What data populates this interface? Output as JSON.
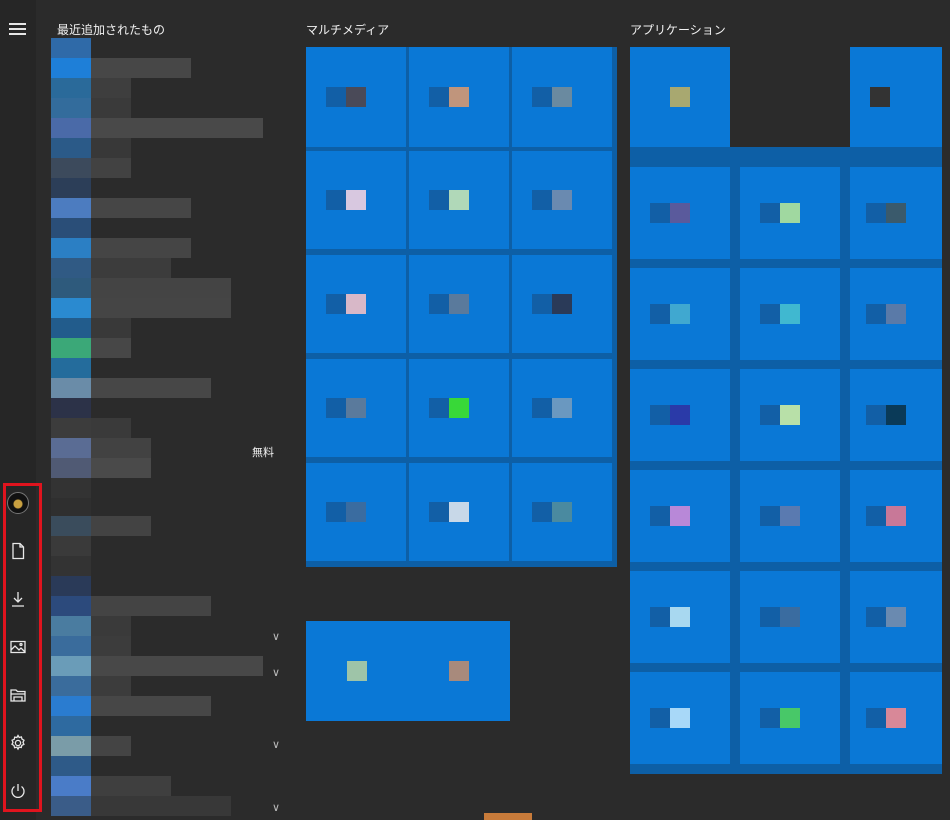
{
  "start_menu": {
    "recent_header": "最近追加されたもの",
    "fragment_text": "無料",
    "groups": [
      {
        "title": "マルチメディア"
      },
      {
        "title": "アプリケーション"
      }
    ],
    "rail": {
      "items": [
        "user-account",
        "documents",
        "downloads",
        "pictures",
        "file-explorer",
        "settings",
        "power"
      ]
    }
  },
  "colors": {
    "tile": "#0a78d6",
    "tile_area": "#0d5fa6",
    "highlight_border": "#e0141e",
    "background": "#2b2b2b"
  }
}
